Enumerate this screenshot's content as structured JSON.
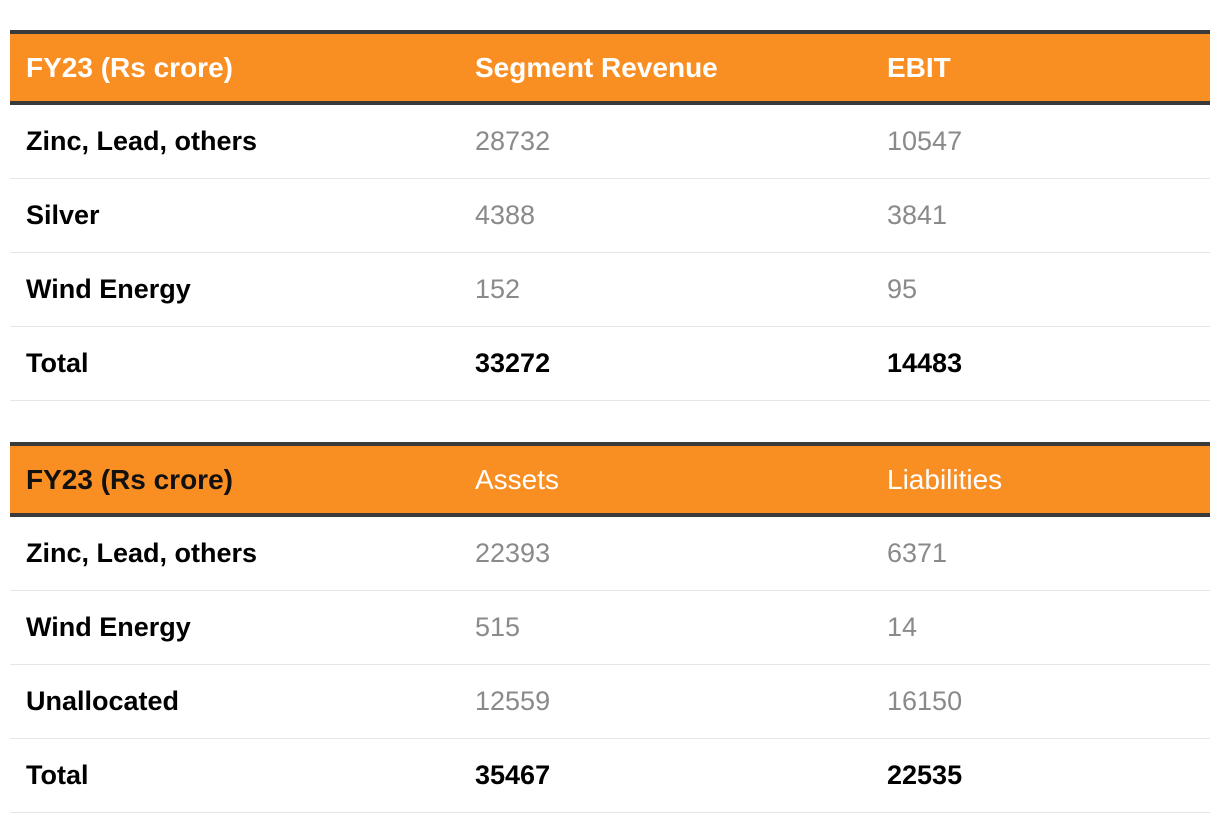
{
  "table1": {
    "headers": [
      "FY23 (Rs crore)",
      "Segment Revenue",
      "EBIT"
    ],
    "rows": [
      [
        "Zinc, Lead, others",
        "28732",
        "10547"
      ],
      [
        "Silver",
        "4388",
        "3841"
      ],
      [
        "Wind Energy",
        "152",
        "95"
      ],
      [
        "Total",
        "33272",
        "14483"
      ]
    ]
  },
  "table2": {
    "headers": [
      "FY23 (Rs crore)",
      "Assets",
      "Liabilities"
    ],
    "rows": [
      [
        "Zinc, Lead, others",
        "22393",
        "6371"
      ],
      [
        "Wind Energy",
        "515",
        "14"
      ],
      [
        "Unallocated",
        "12559",
        "16150"
      ],
      [
        "Total",
        "35467",
        "22535"
      ]
    ]
  },
  "colors": {
    "header_bg": "#f98e22",
    "header_border": "#3a3a3a",
    "value_text": "#8a8a8a"
  }
}
